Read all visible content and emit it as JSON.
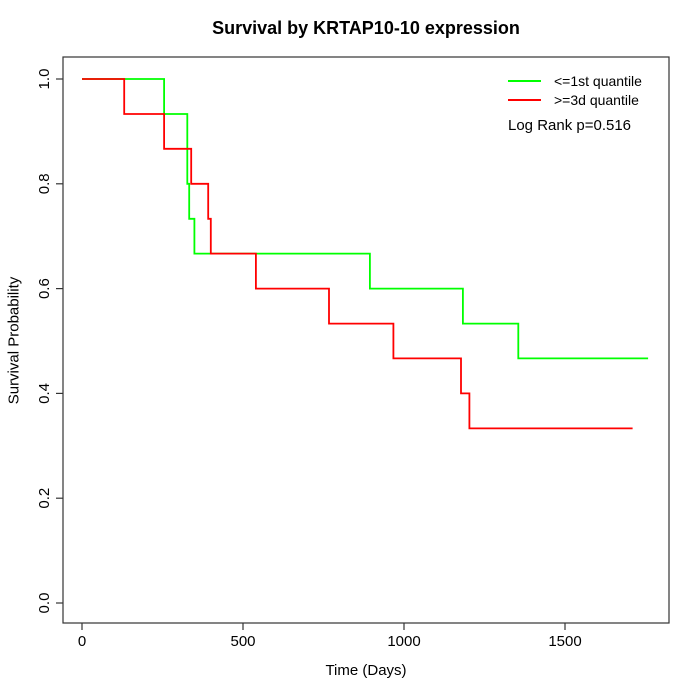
{
  "chart_data": {
    "type": "line",
    "subtype": "kaplan-meier-step",
    "title": "Survival by KRTAP10-10 expression",
    "xlabel": "Time (Days)",
    "ylabel": "Survival Probability",
    "xlim": [
      0,
      1760
    ],
    "ylim": [
      0.0,
      1.0
    ],
    "x_ticks": [
      0,
      500,
      1000,
      1500
    ],
    "y_ticks": [
      0.0,
      0.2,
      0.4,
      0.6,
      0.8,
      1.0
    ],
    "y_tick_labels": [
      "0.0",
      "0.2",
      "0.4",
      "0.6",
      "0.8",
      "1.0"
    ],
    "grid": false,
    "legend_position": "top-right",
    "annotation": "Log Rank p=0.516",
    "series": [
      {
        "name": "<=1st quantile",
        "color": "#00ff00",
        "points": [
          [
            0,
            1.0
          ],
          [
            255,
            1.0
          ],
          [
            255,
            0.9333
          ],
          [
            327,
            0.9333
          ],
          [
            327,
            0.8
          ],
          [
            333,
            0.8
          ],
          [
            333,
            0.7333
          ],
          [
            349,
            0.7333
          ],
          [
            349,
            0.6667
          ],
          [
            894,
            0.6667
          ],
          [
            894,
            0.6
          ],
          [
            1183,
            0.6
          ],
          [
            1183,
            0.5333
          ],
          [
            1355,
            0.5333
          ],
          [
            1355,
            0.4667
          ],
          [
            1758,
            0.4667
          ]
        ]
      },
      {
        "name": ">=3d quantile",
        "color": "#ff0000",
        "points": [
          [
            0,
            1.0
          ],
          [
            131,
            1.0
          ],
          [
            131,
            0.9333
          ],
          [
            255,
            0.9333
          ],
          [
            255,
            0.8667
          ],
          [
            339,
            0.8667
          ],
          [
            339,
            0.8
          ],
          [
            392,
            0.8
          ],
          [
            392,
            0.7333
          ],
          [
            400,
            0.7333
          ],
          [
            400,
            0.6667
          ],
          [
            540,
            0.6667
          ],
          [
            540,
            0.6
          ],
          [
            767,
            0.6
          ],
          [
            767,
            0.5333
          ],
          [
            967,
            0.5333
          ],
          [
            967,
            0.4667
          ],
          [
            1177,
            0.4667
          ],
          [
            1177,
            0.4
          ],
          [
            1203,
            0.4
          ],
          [
            1203,
            0.3333
          ],
          [
            1710,
            0.3333
          ]
        ]
      }
    ]
  }
}
